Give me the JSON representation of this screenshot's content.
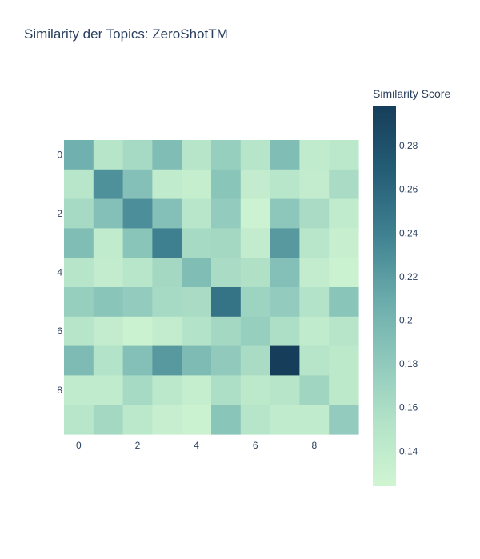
{
  "chart_data": {
    "type": "heatmap",
    "title": "Similarity der Topics: ZeroShotTM",
    "colorbar_title": "Similarity Score",
    "x_ticks": [
      "0",
      "2",
      "4",
      "6",
      "8"
    ],
    "y_ticks": [
      "0",
      "2",
      "4",
      "6",
      "8"
    ],
    "x": [
      0,
      1,
      2,
      3,
      4,
      5,
      6,
      7,
      8,
      9
    ],
    "y": [
      0,
      1,
      2,
      3,
      4,
      5,
      6,
      7,
      8,
      9
    ],
    "colorbar_ticks": [
      "0.28",
      "0.26",
      "0.24",
      "0.22",
      "0.2",
      "0.18",
      "0.16",
      "0.14"
    ],
    "zmin": 0.124,
    "zmax": 0.298,
    "colorscale": [
      "#d0f5d2",
      "#b3e3c8",
      "#8ec8bc",
      "#68aaaa",
      "#3e8090",
      "#245c76",
      "#163e5a"
    ],
    "z": [
      [
        0.205,
        0.15,
        0.163,
        0.193,
        0.15,
        0.175,
        0.15,
        0.193,
        0.14,
        0.145
      ],
      [
        0.148,
        0.228,
        0.19,
        0.14,
        0.135,
        0.185,
        0.138,
        0.148,
        0.138,
        0.16
      ],
      [
        0.163,
        0.19,
        0.23,
        0.19,
        0.148,
        0.178,
        0.128,
        0.183,
        0.16,
        0.14
      ],
      [
        0.193,
        0.14,
        0.185,
        0.24,
        0.163,
        0.165,
        0.138,
        0.223,
        0.148,
        0.133
      ],
      [
        0.15,
        0.138,
        0.148,
        0.165,
        0.193,
        0.16,
        0.155,
        0.19,
        0.138,
        0.13
      ],
      [
        0.175,
        0.185,
        0.178,
        0.163,
        0.16,
        0.25,
        0.17,
        0.178,
        0.153,
        0.185
      ],
      [
        0.15,
        0.138,
        0.13,
        0.138,
        0.153,
        0.165,
        0.175,
        0.158,
        0.14,
        0.15
      ],
      [
        0.195,
        0.153,
        0.19,
        0.223,
        0.195,
        0.18,
        0.16,
        0.298,
        0.15,
        0.143
      ],
      [
        0.14,
        0.14,
        0.163,
        0.145,
        0.135,
        0.158,
        0.143,
        0.15,
        0.168,
        0.143
      ],
      [
        0.148,
        0.165,
        0.145,
        0.133,
        0.13,
        0.185,
        0.15,
        0.14,
        0.14,
        0.178
      ]
    ]
  }
}
